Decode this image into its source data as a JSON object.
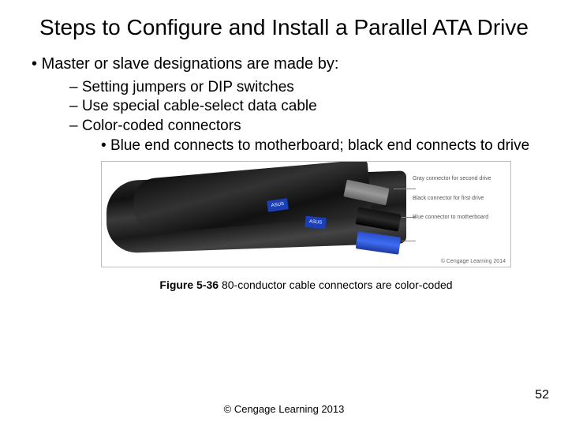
{
  "title": "Steps to Configure and Install a Parallel ATA Drive",
  "main_bullet": "Master or slave designations are made by:",
  "sub_bullets": [
    "Setting jumpers or DIP switches",
    "Use special cable-select data cable",
    "Color-coded connectors"
  ],
  "sub2_bullet": "Blue end connects to motherboard; black end connects to drive",
  "figure": {
    "asus_text": "ASUS",
    "labels": {
      "gray": "Gray connector for second drive",
      "black": "Black connector for first drive",
      "blue": "Blue connector to motherboard"
    },
    "image_credit": "© Cengage Learning 2014",
    "caption_bold": "Figure 5-36",
    "caption_rest": " 80-conductor cable connectors are color-coded"
  },
  "footer": "© Cengage Learning  2013",
  "page_number": "52"
}
